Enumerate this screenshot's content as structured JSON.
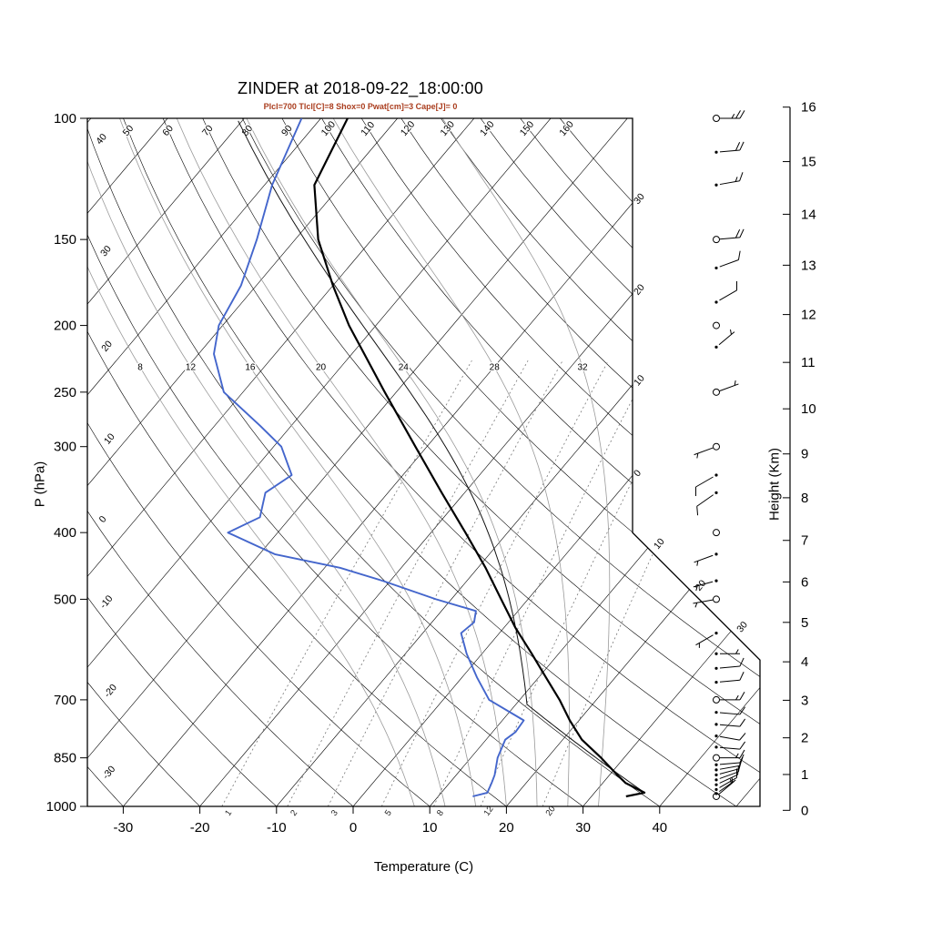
{
  "chart_data": {
    "type": "skew-t-log-p",
    "title": "ZINDER at 2018-09-22_18:00:00",
    "params_line": "Plcl=700 Tlcl[C]=8 Shox=0 Pwat[cm]=3 Cape[J]= 0",
    "params_color": "#aa3d1e",
    "axes": {
      "pressure": {
        "label": "P (hPa)",
        "ticks": [
          100,
          150,
          200,
          250,
          300,
          400,
          500,
          700,
          850,
          1000
        ],
        "range": [
          100,
          1000
        ]
      },
      "temperature": {
        "label": "Temperature (C)",
        "ticks": [
          -30,
          -20,
          -10,
          0,
          10,
          20,
          30,
          40
        ],
        "range": [
          -35,
          52
        ]
      },
      "height_km": {
        "label": "Height (Km)",
        "ticks": [
          0,
          1,
          2,
          3,
          4,
          5,
          6,
          7,
          8,
          9,
          10,
          11,
          12,
          13,
          14,
          15,
          16
        ],
        "range": [
          0,
          16
        ]
      }
    },
    "grid": {
      "isotherms": {
        "min": -120,
        "max": 50,
        "step": 10
      },
      "isotherm_edge_labels": [
        {
          "t": -30,
          "text": "30"
        },
        {
          "t": -20,
          "text": "20"
        },
        {
          "t": -10,
          "text": "10"
        },
        {
          "t": 0,
          "text": "0"
        },
        {
          "t": 10,
          "text": "10"
        },
        {
          "t": 20,
          "text": "20"
        },
        {
          "t": 30,
          "text": "30"
        }
      ],
      "dry_adiabats": {
        "min": -30,
        "max": 160,
        "step": 10
      },
      "dry_adiabat_top_labels": [
        50,
        60,
        70,
        80,
        90,
        100,
        110,
        120,
        130,
        140,
        150,
        160
      ],
      "dry_adiabat_left_labels": [
        40,
        30,
        20,
        10,
        0,
        -10,
        -20,
        -30
      ],
      "moist_adiabats": [
        8,
        12,
        16,
        20,
        24,
        28,
        32
      ],
      "moist_label_pressure": 225,
      "mixing_ratios": [
        1,
        2,
        3,
        5,
        8,
        12,
        20
      ]
    },
    "sounding": {
      "temperature_c": [
        [
          967,
          34.5
        ],
        [
          955,
          36.5
        ],
        [
          925,
          33
        ],
        [
          900,
          31
        ],
        [
          850,
          27
        ],
        [
          800,
          22.5
        ],
        [
          750,
          18.8
        ],
        [
          700,
          15.2
        ],
        [
          650,
          11
        ],
        [
          600,
          6.5
        ],
        [
          550,
          1.5
        ],
        [
          500,
          -3.5
        ],
        [
          450,
          -9
        ],
        [
          400,
          -15.5
        ],
        [
          350,
          -23
        ],
        [
          300,
          -31.5
        ],
        [
          250,
          -41.5
        ],
        [
          200,
          -53.5
        ],
        [
          175,
          -60
        ],
        [
          150,
          -67
        ],
        [
          125,
          -73.5
        ],
        [
          100,
          -76.5
        ]
      ],
      "dewpoint_c": [
        [
          967,
          14.5
        ],
        [
          955,
          16
        ],
        [
          925,
          15.5
        ],
        [
          900,
          15
        ],
        [
          850,
          13.5
        ],
        [
          800,
          12.5
        ],
        [
          780,
          13
        ],
        [
          750,
          12.8
        ],
        [
          700,
          6
        ],
        [
          650,
          2
        ],
        [
          600,
          -2
        ],
        [
          560,
          -5
        ],
        [
          540,
          -4.5
        ],
        [
          520,
          -5.5
        ],
        [
          500,
          -12
        ],
        [
          470,
          -21
        ],
        [
          450,
          -28
        ],
        [
          430,
          -38
        ],
        [
          400,
          -46.5
        ],
        [
          380,
          -44
        ],
        [
          350,
          -46
        ],
        [
          330,
          -44.5
        ],
        [
          300,
          -49
        ],
        [
          280,
          -54
        ],
        [
          250,
          -62.5
        ],
        [
          220,
          -68
        ],
        [
          200,
          -70.5
        ],
        [
          175,
          -72
        ],
        [
          150,
          -75
        ],
        [
          125,
          -79
        ],
        [
          100,
          -82.5
        ]
      ],
      "wind": [
        [
          100,
          90,
          25
        ],
        [
          112,
          85,
          20
        ],
        [
          125,
          80,
          15
        ],
        [
          150,
          85,
          20
        ],
        [
          165,
          70,
          10
        ],
        [
          185,
          60,
          10
        ],
        [
          200,
          0,
          0
        ],
        [
          215,
          50,
          5
        ],
        [
          250,
          70,
          5
        ],
        [
          300,
          250,
          5
        ],
        [
          330,
          240,
          10
        ],
        [
          350,
          235,
          10
        ],
        [
          400,
          0,
          0
        ],
        [
          430,
          250,
          5
        ],
        [
          470,
          255,
          5
        ],
        [
          500,
          260,
          5
        ],
        [
          560,
          240,
          5
        ],
        [
          600,
          90,
          5
        ],
        [
          630,
          85,
          10
        ],
        [
          660,
          85,
          10
        ],
        [
          700,
          90,
          15
        ],
        [
          730,
          95,
          10
        ],
        [
          760,
          95,
          10
        ],
        [
          790,
          100,
          10
        ],
        [
          820,
          95,
          10
        ],
        [
          850,
          90,
          15
        ],
        [
          870,
          85,
          10
        ],
        [
          885,
          80,
          10
        ],
        [
          900,
          75,
          10
        ],
        [
          915,
          70,
          10
        ],
        [
          930,
          65,
          10
        ],
        [
          945,
          60,
          10
        ],
        [
          958,
          55,
          5
        ],
        [
          967,
          50,
          5
        ]
      ],
      "wind_major_levels": [
        100,
        150,
        200,
        250,
        300,
        400,
        500,
        700,
        850,
        967
      ]
    },
    "colors": {
      "temperature": "#000000",
      "dewpoint": "#4466cc",
      "parcel": "#111111",
      "grid_lines": "#000000",
      "moist_adiabats": "#9a9a9a",
      "mixing_ratio": "#777777",
      "frame": "#000000"
    }
  }
}
